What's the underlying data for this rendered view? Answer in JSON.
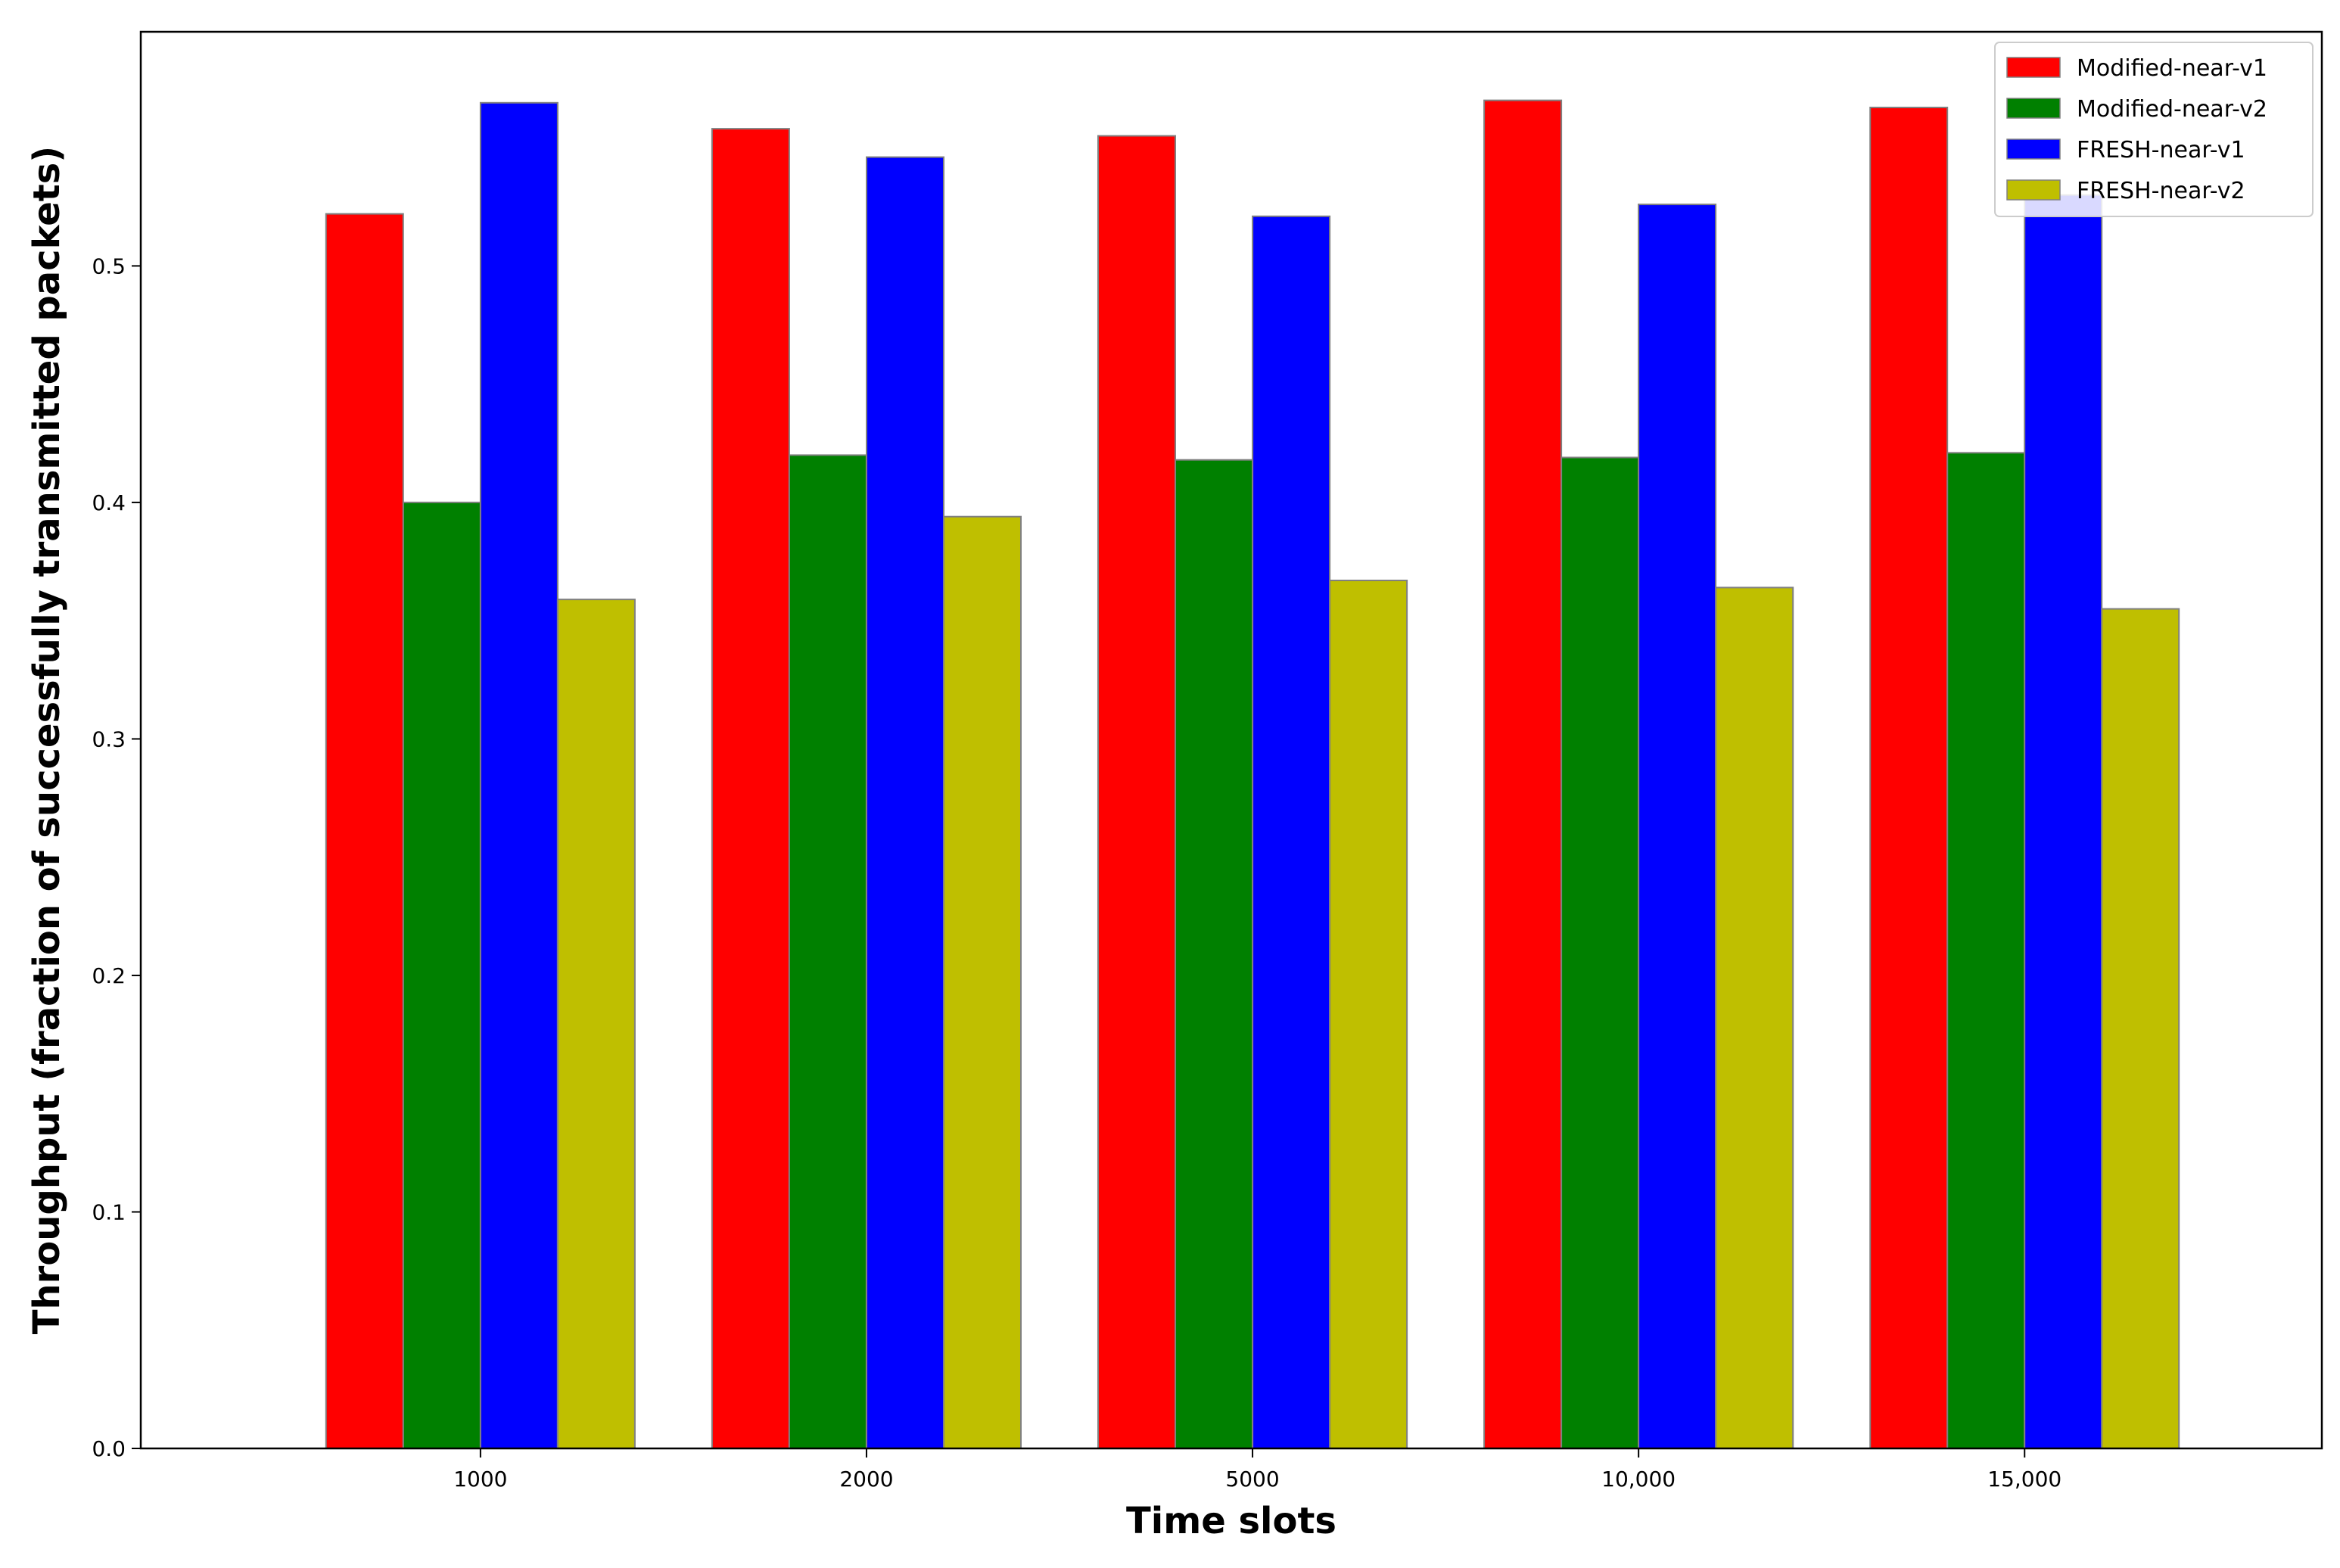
{
  "chart_data": {
    "type": "bar",
    "title": "",
    "xlabel": "Time slots",
    "ylabel": "Throughput (fraction of successfully transmitted packets)",
    "categories": [
      "1000",
      "2000",
      "5000",
      "10,000",
      "15,000"
    ],
    "series": [
      {
        "name": "Modified-near-v1",
        "color": "#ff0000",
        "values": [
          0.522,
          0.558,
          0.555,
          0.57,
          0.567
        ]
      },
      {
        "name": "Modified-near-v2",
        "color": "#008000",
        "values": [
          0.4,
          0.42,
          0.418,
          0.419,
          0.421
        ]
      },
      {
        "name": "FRESH-near-v1",
        "color": "#0000ff",
        "values": [
          0.569,
          0.546,
          0.521,
          0.526,
          0.53
        ]
      },
      {
        "name": "FRESH-near-v2",
        "color": "#bfbf00",
        "values": [
          0.359,
          0.394,
          0.367,
          0.364,
          0.355
        ]
      }
    ],
    "ylim": [
      0,
      0.599
    ],
    "yticks": [
      0.0,
      0.1,
      0.2,
      0.3,
      0.4,
      0.5
    ],
    "ytick_labels": [
      "0.0",
      "0.1",
      "0.2",
      "0.3",
      "0.4",
      "0.5"
    ],
    "grid": false,
    "legend_position": "top-right",
    "bar_edge_color": "#808080"
  }
}
